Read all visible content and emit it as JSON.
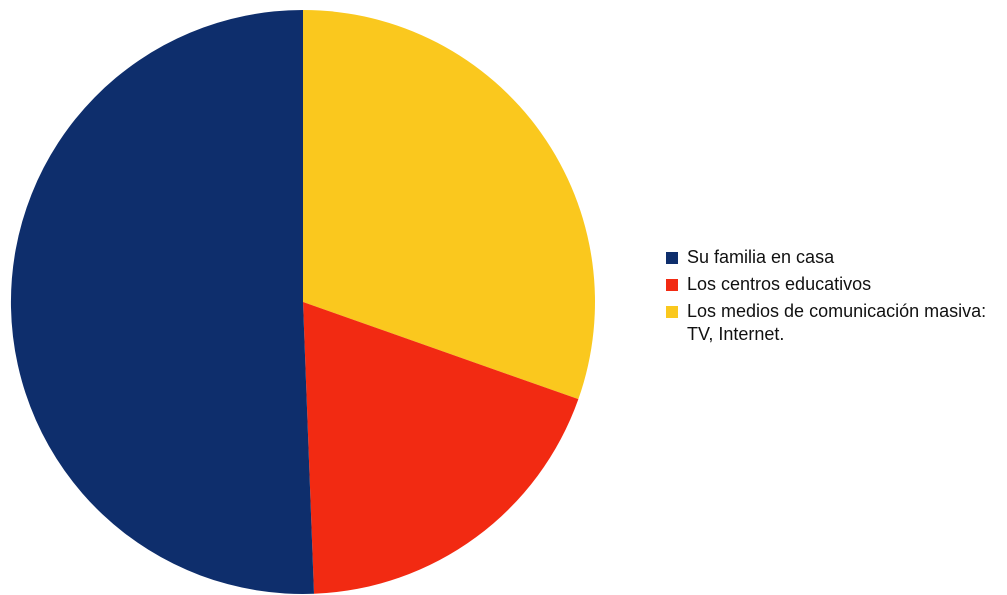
{
  "chart_data": {
    "type": "pie",
    "title": "",
    "start_angle": "top",
    "direction": "clockwise",
    "series": [
      {
        "name": "Los medios de comunicación masiva: TV, Internet.",
        "value": 30.4,
        "color": "#fac81e"
      },
      {
        "name": "Los centros educativos",
        "value": 19.0,
        "color": "#f22a12"
      },
      {
        "name": "Su familia en casa",
        "value": 50.6,
        "color": "#0e2e6c"
      }
    ],
    "legend": {
      "position": "right",
      "items": [
        {
          "label": "Su familia en casa",
          "color": "#0e2e6c"
        },
        {
          "label": "Los centros educativos",
          "color": "#f22a12"
        },
        {
          "label": "Los medios de comunicación masiva: TV, Internet.",
          "color": "#fac81e"
        }
      ]
    }
  }
}
